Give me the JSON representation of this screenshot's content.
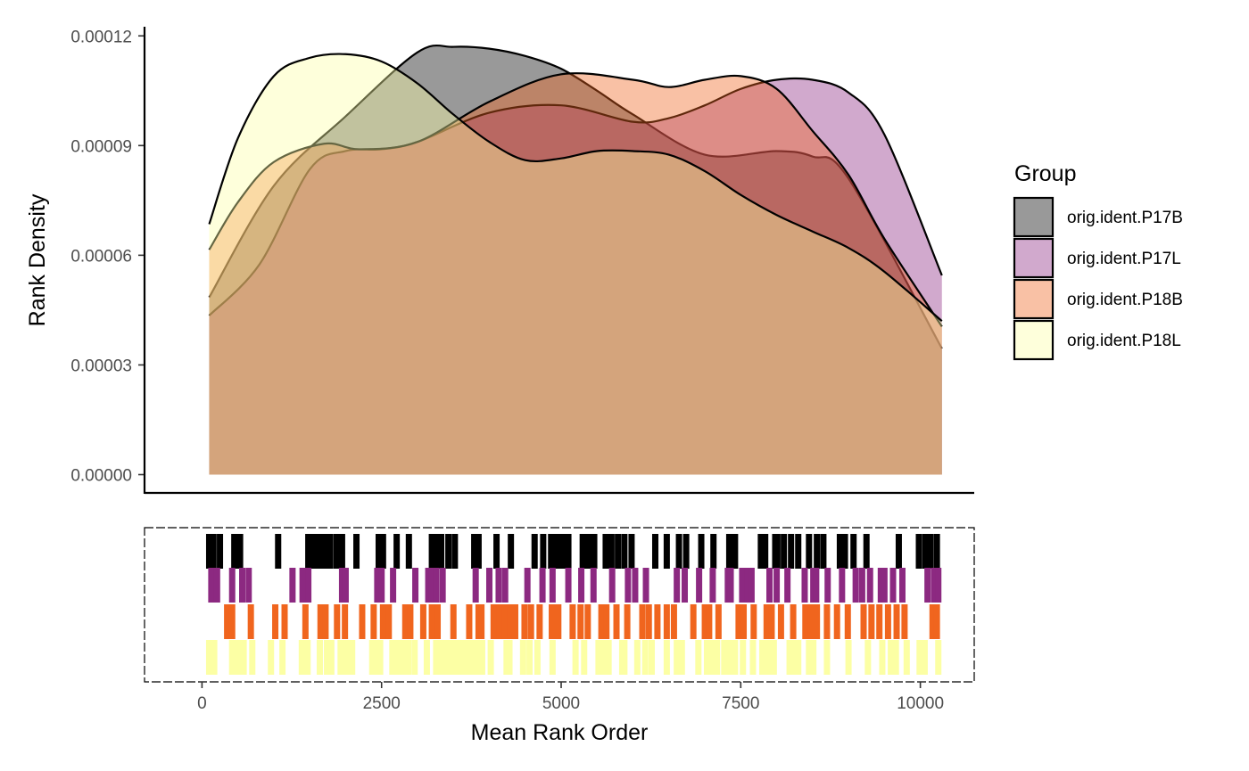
{
  "chart_data": [
    {
      "type": "area",
      "subtype": "density",
      "title": "",
      "xlabel": "",
      "ylabel": "Rank Density",
      "xlim": [
        -800,
        10750
      ],
      "ylim": [
        -5e-06,
        0.0001225
      ],
      "y_ticks": [
        0,
        3e-05,
        6e-05,
        9e-05,
        0.00012
      ],
      "y_tick_labels": [
        "0.00000",
        "0.00003",
        "0.00006",
        "0.00009",
        "0.00012"
      ],
      "grid": false,
      "legend": {
        "title": "Group",
        "position": "right",
        "entries": [
          "orig.ident.P17B",
          "orig.ident.P17L",
          "orig.ident.P18B",
          "orig.ident.P18L"
        ]
      },
      "series": [
        {
          "name": "orig.ident.P17B",
          "color": "#000000",
          "opacity": 0.4,
          "x": [
            100,
            1000,
            2000,
            3000,
            3500,
            4000,
            4500,
            5000,
            5500,
            6000,
            7000,
            8000,
            8500,
            9000,
            10300
          ],
          "y": [
            4.85e-05,
            7.9e-05,
            9.8e-05,
            0.0001155,
            0.000117,
            0.0001165,
            0.0001145,
            0.000111,
            0.000105,
            9.85e-05,
            8.75e-05,
            8.85e-05,
            8.7e-05,
            8.1e-05,
            3.45e-05
          ]
        },
        {
          "name": "orig.ident.P17L",
          "color": "#8C2981",
          "opacity": 0.4,
          "x": [
            100,
            800,
            1500,
            2000,
            2500,
            3000,
            4000,
            5000,
            6000,
            6500,
            7000,
            7500,
            8000,
            8500,
            9000,
            9500,
            10300
          ],
          "y": [
            4.35e-05,
            5.75e-05,
            8.35e-05,
            8.85e-05,
            8.9e-05,
            9.1e-05,
            9.9e-05,
            0.000101,
            9.65e-05,
            9.75e-05,
            0.000101,
            0.0001055,
            0.000108,
            0.000108,
            0.0001045,
            9.3e-05,
            5.45e-05
          ]
        },
        {
          "name": "orig.ident.P18B",
          "color": "#F0651E",
          "opacity": 0.4,
          "x": [
            100,
            500,
            1000,
            1700,
            2200,
            3000,
            4000,
            5000,
            6000,
            6500,
            7000,
            7500,
            8000,
            8500,
            9000,
            9500,
            10300
          ],
          "y": [
            6.15e-05,
            7.45e-05,
            8.55e-05,
            9.05e-05,
            8.9e-05,
            9.1e-05,
            0.000102,
            0.0001095,
            0.000108,
            0.000106,
            0.000108,
            0.000109,
            0.0001055,
            9.4e-05,
            8.2e-05,
            6.45e-05,
            4.05e-05
          ]
        },
        {
          "name": "orig.ident.P18L",
          "color": "#FCFFA4",
          "opacity": 0.4,
          "x": [
            100,
            500,
            1000,
            1500,
            2000,
            2500,
            3000,
            3500,
            4000,
            4500,
            5000,
            5500,
            6000,
            6500,
            7000,
            7500,
            8000,
            8500,
            9000,
            9500,
            10300
          ],
          "y": [
            6.85e-05,
            9.2e-05,
            0.000109,
            0.000114,
            0.000115,
            0.000113,
            0.000107,
            9.85e-05,
            9.1e-05,
            8.6e-05,
            8.65e-05,
            8.85e-05,
            8.85e-05,
            8.75e-05,
            8.3e-05,
            7.65e-05,
            7.1e-05,
            6.65e-05,
            6.2e-05,
            5.55e-05,
            4.2e-05
          ]
        }
      ]
    },
    {
      "type": "scatter",
      "subtype": "rug",
      "title": "",
      "xlabel": "Mean Rank Order",
      "ylabel": "",
      "xlim": [
        -800,
        10750
      ],
      "x_ticks": [
        0,
        2500,
        5000,
        7500,
        10000
      ],
      "x_tick_labels": [
        "0",
        "2500",
        "5000",
        "7500",
        "10000"
      ],
      "grid": false,
      "series": [
        {
          "name": "orig.ident.P17B",
          "color": "#000000",
          "x": [
            100,
            160,
            250,
            450,
            530,
            1060,
            1480,
            1530,
            1590,
            1650,
            1720,
            1780,
            1870,
            1950,
            2150,
            2460,
            2520,
            2710,
            2880,
            3200,
            3250,
            3330,
            3430,
            3520,
            3790,
            3850,
            4100,
            4300,
            4630,
            4750,
            4860,
            4900,
            4960,
            5020,
            5100,
            5300,
            5380,
            5460,
            5620,
            5700,
            5790,
            5880,
            5980,
            6310,
            6470,
            6640,
            6740,
            6950,
            7120,
            7340,
            7420,
            7780,
            7840,
            7980,
            8010,
            8100,
            8200,
            8300,
            8450,
            8560,
            8650,
            8880,
            8950,
            9070,
            9250,
            9700,
            9980,
            10070,
            10140,
            10230
          ]
        },
        {
          "name": "orig.ident.P17L",
          "color": "#8C2981",
          "x": [
            130,
            210,
            420,
            560,
            650,
            1260,
            1400,
            1480,
            1950,
            2000,
            2440,
            2500,
            2660,
            2970,
            3150,
            3200,
            3260,
            3350,
            3810,
            4000,
            4130,
            4220,
            4530,
            4740,
            4880,
            5100,
            5280,
            5450,
            5710,
            5930,
            6030,
            6180,
            6610,
            6720,
            6920,
            7110,
            7320,
            7360,
            7520,
            7590,
            7650,
            7900,
            8000,
            8150,
            8390,
            8510,
            8550,
            8710,
            8910,
            9100,
            9190,
            9300,
            9450,
            9500,
            9620,
            9750,
            10100,
            10190,
            10250
          ]
        },
        {
          "name": "orig.ident.P18B",
          "color": "#F0651E",
          "x": [
            350,
            420,
            680,
            1020,
            1150,
            1440,
            1650,
            1720,
            1880,
            1990,
            2230,
            2390,
            2520,
            2600,
            2830,
            2900,
            3080,
            3200,
            3280,
            3500,
            3720,
            3850,
            3890,
            4060,
            4120,
            4140,
            4220,
            4290,
            4360,
            4490,
            4580,
            4700,
            4870,
            4900,
            4960,
            5160,
            5270,
            5370,
            5560,
            5630,
            5770,
            5920,
            6130,
            6220,
            6340,
            6470,
            6570,
            6840,
            7000,
            7060,
            7190,
            7470,
            7540,
            7680,
            7860,
            7930,
            8060,
            8230,
            8400,
            8480,
            8560,
            8700,
            8840,
            8990,
            9210,
            9320,
            9430,
            9550,
            9670,
            9780,
            10170,
            10230
          ]
        },
        {
          "name": "orig.ident.P18L",
          "color": "#FCFFA4",
          "x": [
            100,
            170,
            420,
            480,
            530,
            580,
            700,
            960,
            1120,
            1390,
            1430,
            1470,
            1640,
            1740,
            1800,
            1930,
            1960,
            2030,
            2090,
            2370,
            2430,
            2480,
            2650,
            2700,
            2730,
            2800,
            2870,
            2960,
            3130,
            3260,
            3320,
            3370,
            3430,
            3490,
            3540,
            3580,
            3660,
            3720,
            3780,
            3850,
            3900,
            4020,
            4240,
            4280,
            4470,
            4560,
            4670,
            4880,
            5200,
            5320,
            5520,
            5600,
            5660,
            5850,
            5880,
            6060,
            6170,
            6260,
            6470,
            6610,
            6680,
            6910,
            7030,
            7060,
            7130,
            7170,
            7270,
            7350,
            7420,
            7530,
            7670,
            7800,
            7880,
            7960,
            8180,
            8230,
            8300,
            8450,
            8510,
            8700,
            9000,
            9270,
            9470,
            9590,
            9660,
            9810,
            9990,
            10060,
            10250
          ]
        }
      ]
    }
  ]
}
